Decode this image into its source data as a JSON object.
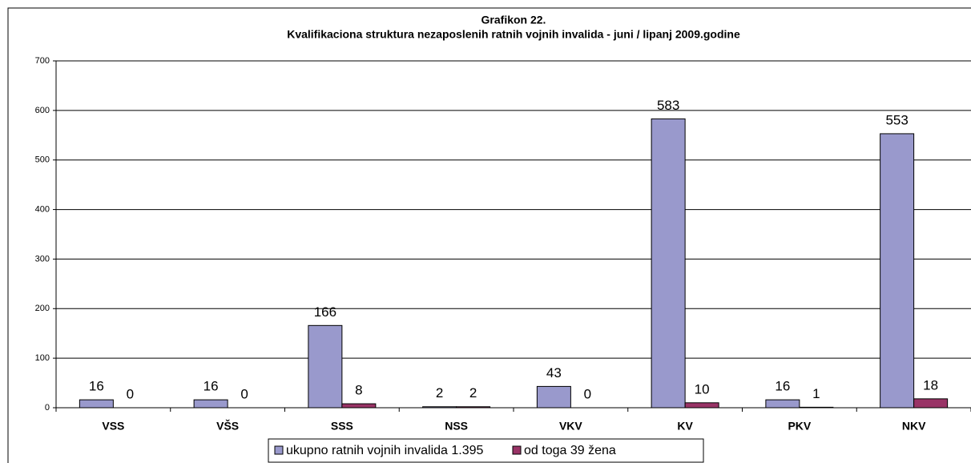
{
  "chart_data": {
    "type": "bar",
    "title": "Grafikon 22.",
    "subtitle": "Kvalifikaciona struktura nezaposlenih ratnih vojnih invalida - juni / lipanj  2009.godine",
    "categories": [
      "VSS",
      "VŠS",
      "SSS",
      "NSS",
      "VKV",
      "KV",
      "PKV",
      "NKV"
    ],
    "series": [
      {
        "name": "ukupno ratnih vojnih invalida 1.395",
        "color": "#9999cc",
        "values": [
          16,
          16,
          166,
          2,
          43,
          583,
          16,
          553
        ]
      },
      {
        "name": "od toga 39 žena",
        "color": "#993366",
        "values": [
          0,
          0,
          8,
          2,
          0,
          10,
          1,
          18
        ]
      }
    ],
    "ylim": [
      0,
      700
    ],
    "yticks": [
      0,
      100,
      200,
      300,
      400,
      500,
      600,
      700
    ],
    "grid": true,
    "legend": "bottom"
  }
}
